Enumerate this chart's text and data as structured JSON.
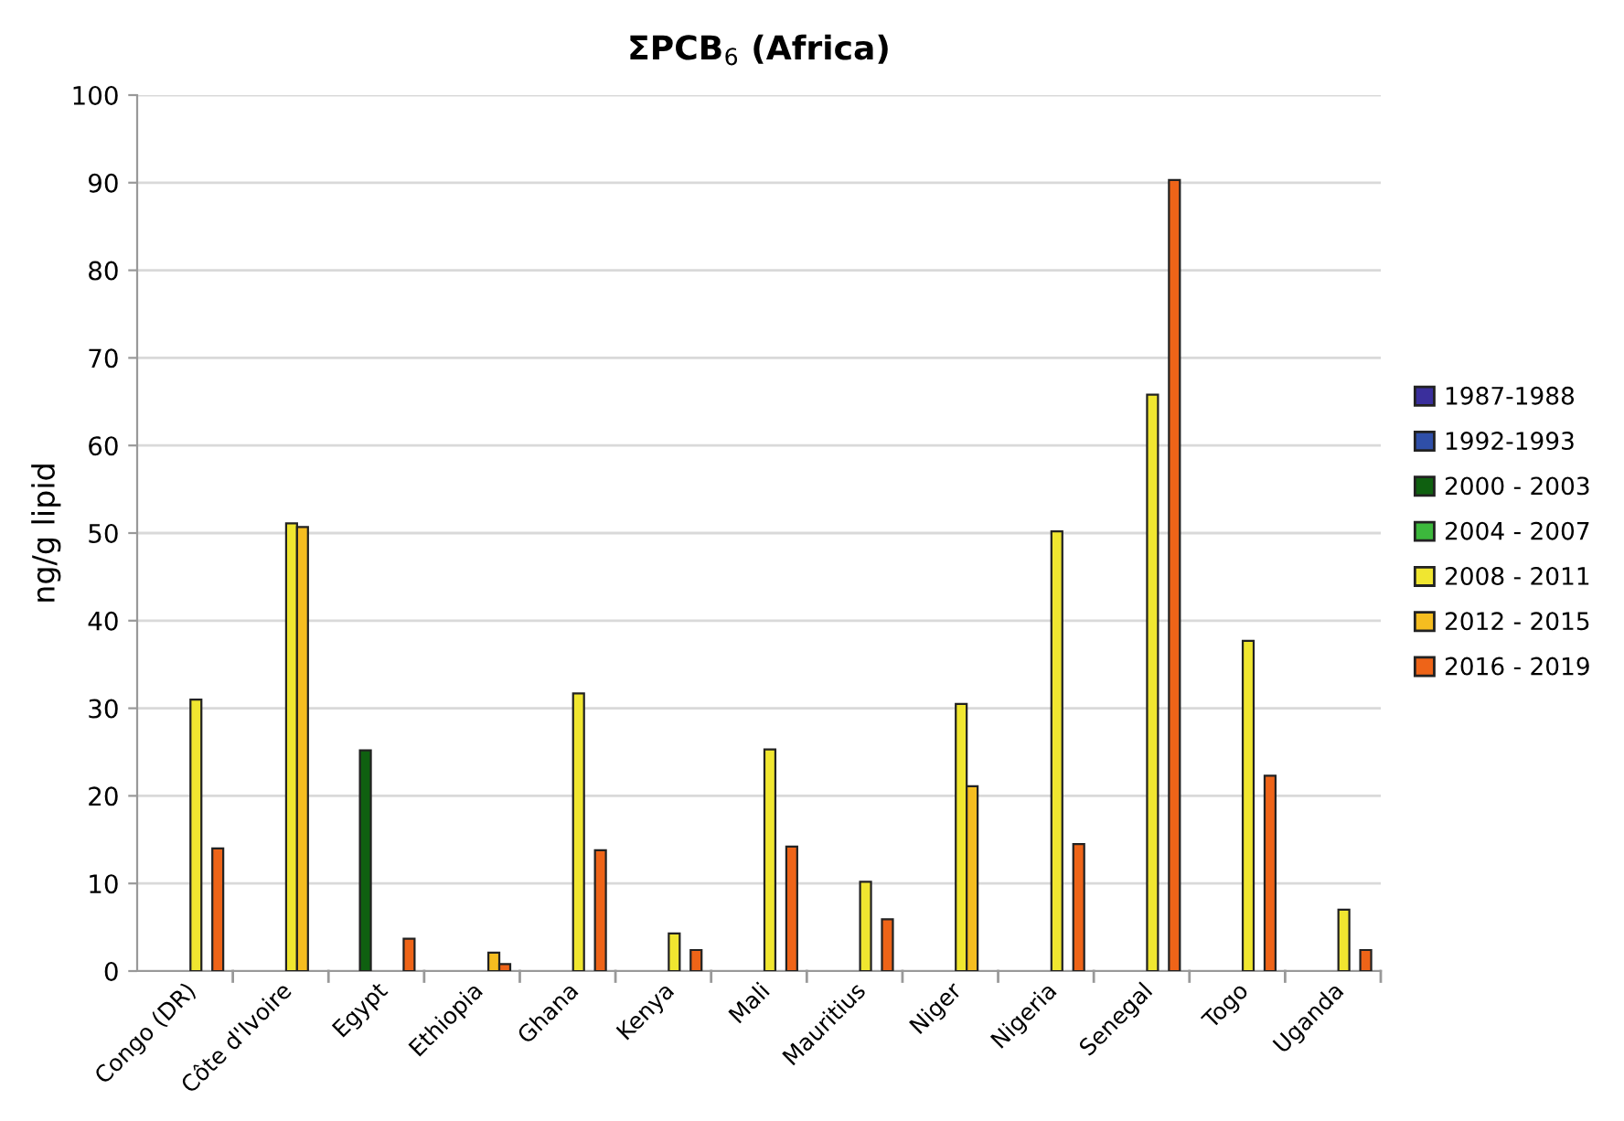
{
  "chart_data": {
    "type": "bar",
    "title": "ΣPCB$_{6}$ (Africa)",
    "ylabel": "ng/g lipid",
    "categories": [
      "Congo (DR)",
      "Côte d'Ivoire",
      "Egypt",
      "Ethiopia",
      "Ghana",
      "Kenya",
      "Mali",
      "Mauritius",
      "Niger",
      "Nigeria",
      "Senegal",
      "Togo",
      "Uganda"
    ],
    "series": [
      {
        "name": "1987-1988",
        "color": "#3a2f9c",
        "values": [
          null,
          null,
          null,
          null,
          null,
          null,
          null,
          null,
          null,
          null,
          null,
          null,
          null
        ]
      },
      {
        "name": "1992-1993",
        "color": "#2f4fa8",
        "values": [
          null,
          null,
          null,
          null,
          null,
          null,
          null,
          null,
          null,
          null,
          null,
          null,
          null
        ]
      },
      {
        "name": "2000 - 2003",
        "color": "#0f6010",
        "values": [
          null,
          null,
          25.2,
          null,
          null,
          null,
          null,
          null,
          null,
          null,
          null,
          null,
          null
        ]
      },
      {
        "name": "2004 - 2007",
        "color": "#3cb83c",
        "values": [
          null,
          null,
          null,
          null,
          null,
          null,
          null,
          null,
          null,
          null,
          null,
          null,
          null
        ]
      },
      {
        "name": "2008 - 2011",
        "color": "#f0e630",
        "values": [
          31.0,
          51.1,
          null,
          null,
          31.7,
          4.3,
          25.3,
          10.2,
          30.5,
          50.2,
          65.8,
          37.7,
          7.0
        ]
      },
      {
        "name": "2012 - 2015",
        "color": "#f5bd20",
        "values": [
          null,
          50.7,
          null,
          2.1,
          null,
          null,
          null,
          null,
          21.1,
          null,
          null,
          null,
          null
        ]
      },
      {
        "name": "2016 - 2019",
        "color": "#ee6418",
        "values": [
          14.0,
          null,
          3.7,
          0.8,
          13.8,
          2.4,
          14.2,
          5.9,
          null,
          14.5,
          90.3,
          22.3,
          2.4
        ]
      }
    ],
    "ylim": [
      0,
      100
    ],
    "yticks": [
      0,
      10,
      20,
      30,
      40,
      50,
      60,
      70,
      80,
      90,
      100
    ],
    "grid": "y",
    "legend": "right"
  }
}
